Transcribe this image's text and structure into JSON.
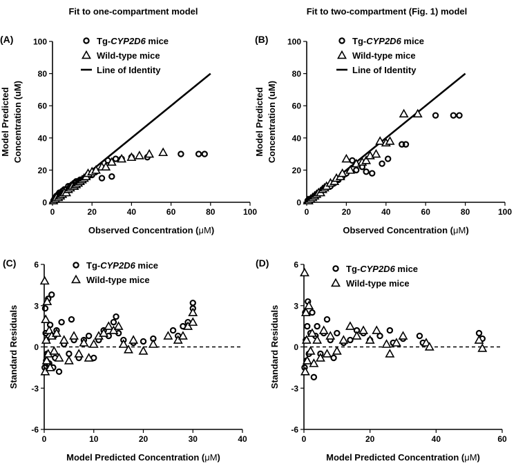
{
  "columns": [
    {
      "title": "Fit to one-compartment model"
    },
    {
      "title": "Fit to two-compartment (Fig. 1) model"
    }
  ],
  "chart_data": [
    {
      "type": "scatter",
      "panel_label": "(A)",
      "xlabel_prefix": "Observed Concentration (",
      "xlabel_unit": "μM",
      "xlabel_suffix": ")",
      "ylabel_line1": "Model Predicted",
      "ylabel_line2": "Concentration (uM)",
      "xlim": [
        0,
        100
      ],
      "ylim": [
        0,
        100
      ],
      "xticks": [
        0,
        20,
        40,
        60,
        80,
        100
      ],
      "yticks": [
        0,
        20,
        40,
        60,
        80,
        100
      ],
      "identity_line": {
        "from": [
          0,
          0
        ],
        "to": [
          80,
          80
        ]
      },
      "legend": [
        "Tg-",
        "CYP2D6",
        " mice",
        "Wild-type mice",
        "Line of Identity"
      ],
      "series": [
        {
          "name": "Tg-CYP2D6 mice",
          "marker": "circle",
          "x": [
            0.5,
            1,
            1.5,
            2,
            2.5,
            3,
            3.5,
            4,
            5,
            6,
            7,
            8,
            9,
            10,
            11,
            12,
            13,
            14,
            15,
            16,
            18,
            20,
            22,
            25,
            28,
            30,
            32,
            35,
            40,
            48,
            65,
            74,
            77
          ],
          "y": [
            1,
            2,
            3,
            4,
            4,
            5,
            6,
            5,
            7,
            8,
            8,
            10,
            10,
            11,
            12,
            13,
            13,
            14,
            14,
            15,
            16,
            17,
            19,
            15,
            26,
            16,
            27,
            27,
            28,
            28,
            30,
            30,
            30
          ]
        },
        {
          "name": "Wild-type mice",
          "marker": "triangle",
          "x": [
            0.5,
            1,
            1.5,
            2,
            3,
            4,
            5,
            6,
            7,
            8,
            9,
            10,
            11,
            12,
            13,
            14,
            15,
            16,
            17,
            18,
            20,
            22,
            25,
            27,
            30,
            35,
            40,
            44,
            49,
            56
          ],
          "y": [
            1,
            2,
            2,
            3,
            3,
            4,
            5,
            6,
            6,
            8,
            9,
            10,
            10,
            11,
            12,
            13,
            14,
            15,
            16,
            18,
            19,
            20,
            22,
            22,
            25,
            27,
            28,
            29,
            30,
            31
          ]
        }
      ]
    },
    {
      "type": "scatter",
      "panel_label": "(B)",
      "xlabel_prefix": "Observed Concentration (",
      "xlabel_unit": "μM",
      "xlabel_suffix": ")",
      "ylabel_line1": "Model Predicted",
      "ylabel_line2": "Concentration (uM)",
      "xlim": [
        0,
        100
      ],
      "ylim": [
        0,
        100
      ],
      "xticks": [
        0,
        20,
        40,
        60,
        80,
        100
      ],
      "yticks": [
        0,
        20,
        40,
        60,
        80,
        100
      ],
      "identity_line": {
        "from": [
          0,
          0
        ],
        "to": [
          80,
          80
        ]
      },
      "legend": [
        "Tg-",
        "CYP2D6",
        " mice",
        "Wild-type mice",
        "Line of Identity"
      ],
      "series": [
        {
          "name": "Tg-CYP2D6 mice",
          "marker": "circle",
          "x": [
            0.5,
            1,
            1.5,
            2,
            3,
            4,
            5,
            6,
            7,
            8,
            10,
            12,
            14,
            16,
            18,
            20,
            23,
            25,
            28,
            30,
            33,
            38,
            41,
            48,
            50,
            65,
            74,
            77
          ],
          "y": [
            1,
            1,
            2,
            2,
            3,
            4,
            5,
            6,
            6,
            8,
            9,
            10,
            12,
            14,
            16,
            18,
            26,
            20,
            22,
            19,
            18,
            24,
            27,
            36,
            36,
            54,
            54,
            54
          ]
        },
        {
          "name": "Wild-type mice",
          "marker": "triangle",
          "x": [
            0.5,
            1,
            2,
            3,
            4,
            5,
            6,
            7,
            8,
            9,
            10,
            12,
            14,
            15,
            17,
            18,
            20,
            22,
            25,
            28,
            30,
            32,
            35,
            37,
            40,
            42,
            49,
            56
          ],
          "y": [
            1,
            1,
            2,
            3,
            4,
            5,
            6,
            6,
            8,
            9,
            10,
            12,
            13,
            15,
            16,
            18,
            27,
            20,
            24,
            25,
            26,
            29,
            30,
            38,
            37,
            38,
            55,
            55
          ]
        }
      ]
    },
    {
      "type": "scatter",
      "panel_label": "(C)",
      "xlabel_prefix": "Model Predicted Concentration (",
      "xlabel_unit": "μM",
      "xlabel_suffix": ")",
      "ylabel_line1": "Standard Residuals",
      "ylabel_line2": "",
      "xlim": [
        0,
        40
      ],
      "ylim": [
        -6,
        6
      ],
      "xticks": [
        0,
        10,
        20,
        30,
        40
      ],
      "yticks": [
        -6,
        -3,
        0,
        3,
        6
      ],
      "zero_line": true,
      "legend": [
        "Tg-",
        "CYP2D6",
        " mice",
        "Wild-type mice"
      ],
      "series": [
        {
          "name": "Tg-CYP2D6 mice",
          "marker": "circle",
          "x": [
            0.1,
            0.2,
            0.3,
            0.4,
            0.5,
            0.6,
            0.8,
            1,
            1.2,
            1.5,
            1.8,
            2,
            2.2,
            2.5,
            3,
            3.5,
            4,
            5,
            5.5,
            6,
            7,
            8,
            9,
            10,
            11,
            12,
            13,
            14,
            14.5,
            15,
            16,
            18,
            20,
            22,
            26,
            27,
            28,
            29,
            30,
            30
          ],
          "y": [
            -1.5,
            2.8,
            1,
            -1,
            0.5,
            -0.5,
            3.5,
            -1.2,
            1.6,
            3.8,
            -1.5,
            0.8,
            -0.8,
            1.2,
            -1.8,
            1.8,
            0.2,
            -0.5,
            2,
            0.5,
            -0.8,
            0.5,
            0.8,
            -0.8,
            0.5,
            1.2,
            0.8,
            1.8,
            2.2,
            1,
            0.5,
            0.3,
            0.4,
            0.6,
            1.2,
            0.8,
            1.5,
            1.8,
            2.8,
            3.2
          ]
        },
        {
          "name": "Wild-type mice",
          "marker": "triangle",
          "x": [
            0.1,
            0.2,
            0.3,
            0.4,
            0.5,
            0.6,
            0.8,
            1,
            1.2,
            1.5,
            2,
            2.5,
            3,
            4,
            5,
            6,
            7,
            8,
            9,
            10,
            11,
            12,
            13,
            14,
            15,
            16,
            17,
            18,
            20,
            22,
            25,
            27,
            28,
            29,
            30,
            30
          ],
          "y": [
            4.8,
            -1.8,
            2,
            0.5,
            -1,
            3.3,
            -0.5,
            1.2,
            -1.5,
            0.8,
            -0.3,
            1,
            -0.8,
            0.5,
            -1,
            0.8,
            -0.5,
            0.3,
            -0.8,
            0.2,
            0.8,
            1,
            1.5,
            1.2,
            1.5,
            0.2,
            -0.2,
            0.5,
            -0.3,
            0.2,
            0.8,
            0.5,
            0.8,
            1.5,
            1.8,
            2.5
          ]
        }
      ]
    },
    {
      "type": "scatter",
      "panel_label": "(D)",
      "xlabel_prefix": "Model Predicted Concentration (",
      "xlabel_unit": "μM",
      "xlabel_suffix": ")",
      "ylabel_line1": "Standard Residuals",
      "ylabel_line2": "",
      "xlim": [
        0,
        60
      ],
      "ylim": [
        -6,
        6
      ],
      "xticks": [
        0,
        20,
        40,
        60
      ],
      "yticks": [
        -6,
        -3,
        0,
        3,
        6
      ],
      "zero_line": true,
      "legend": [
        "Tg-",
        "CYP2D6",
        " mice",
        "Wild-type mice"
      ],
      "series": [
        {
          "name": "Tg-CYP2D6 mice",
          "marker": "circle",
          "x": [
            0.2,
            0.4,
            0.6,
            0.8,
            1,
            1.2,
            1.5,
            2,
            2.5,
            3,
            3.5,
            4,
            5,
            6,
            7,
            8,
            9,
            10,
            12,
            14,
            16,
            18,
            20,
            23,
            26,
            27,
            30,
            35,
            36,
            53,
            54
          ],
          "y": [
            -1.5,
            2.5,
            0.5,
            -1,
            1.5,
            3.3,
            -0.5,
            1,
            2.5,
            -2.2,
            0.8,
            1.5,
            -0.5,
            1,
            2,
            0.5,
            -0.8,
            1,
            0.3,
            0.5,
            1.2,
            1,
            0.5,
            0.8,
            1.2,
            0.3,
            0.6,
            0.8,
            0.3,
            1,
            0.6
          ]
        },
        {
          "name": "Wild-type mice",
          "marker": "triangle",
          "x": [
            0.2,
            0.4,
            0.6,
            0.8,
            1,
            1.5,
            2,
            2.5,
            3,
            4,
            5,
            6,
            7,
            8,
            10,
            12,
            14,
            16,
            18,
            20,
            22,
            25,
            26,
            28,
            30,
            37,
            38,
            53,
            54
          ],
          "y": [
            5.4,
            -1.8,
            2.5,
            0.5,
            -1,
            3,
            -0.3,
            1,
            -1.2,
            0.5,
            -0.8,
            1.2,
            -0.5,
            0.8,
            -0.3,
            0.5,
            1.5,
            0.8,
            1.2,
            0.5,
            1.2,
            0.2,
            -0.5,
            0.3,
            0.8,
            0.3,
            0,
            0.5,
            -0.1
          ]
        }
      ]
    }
  ]
}
